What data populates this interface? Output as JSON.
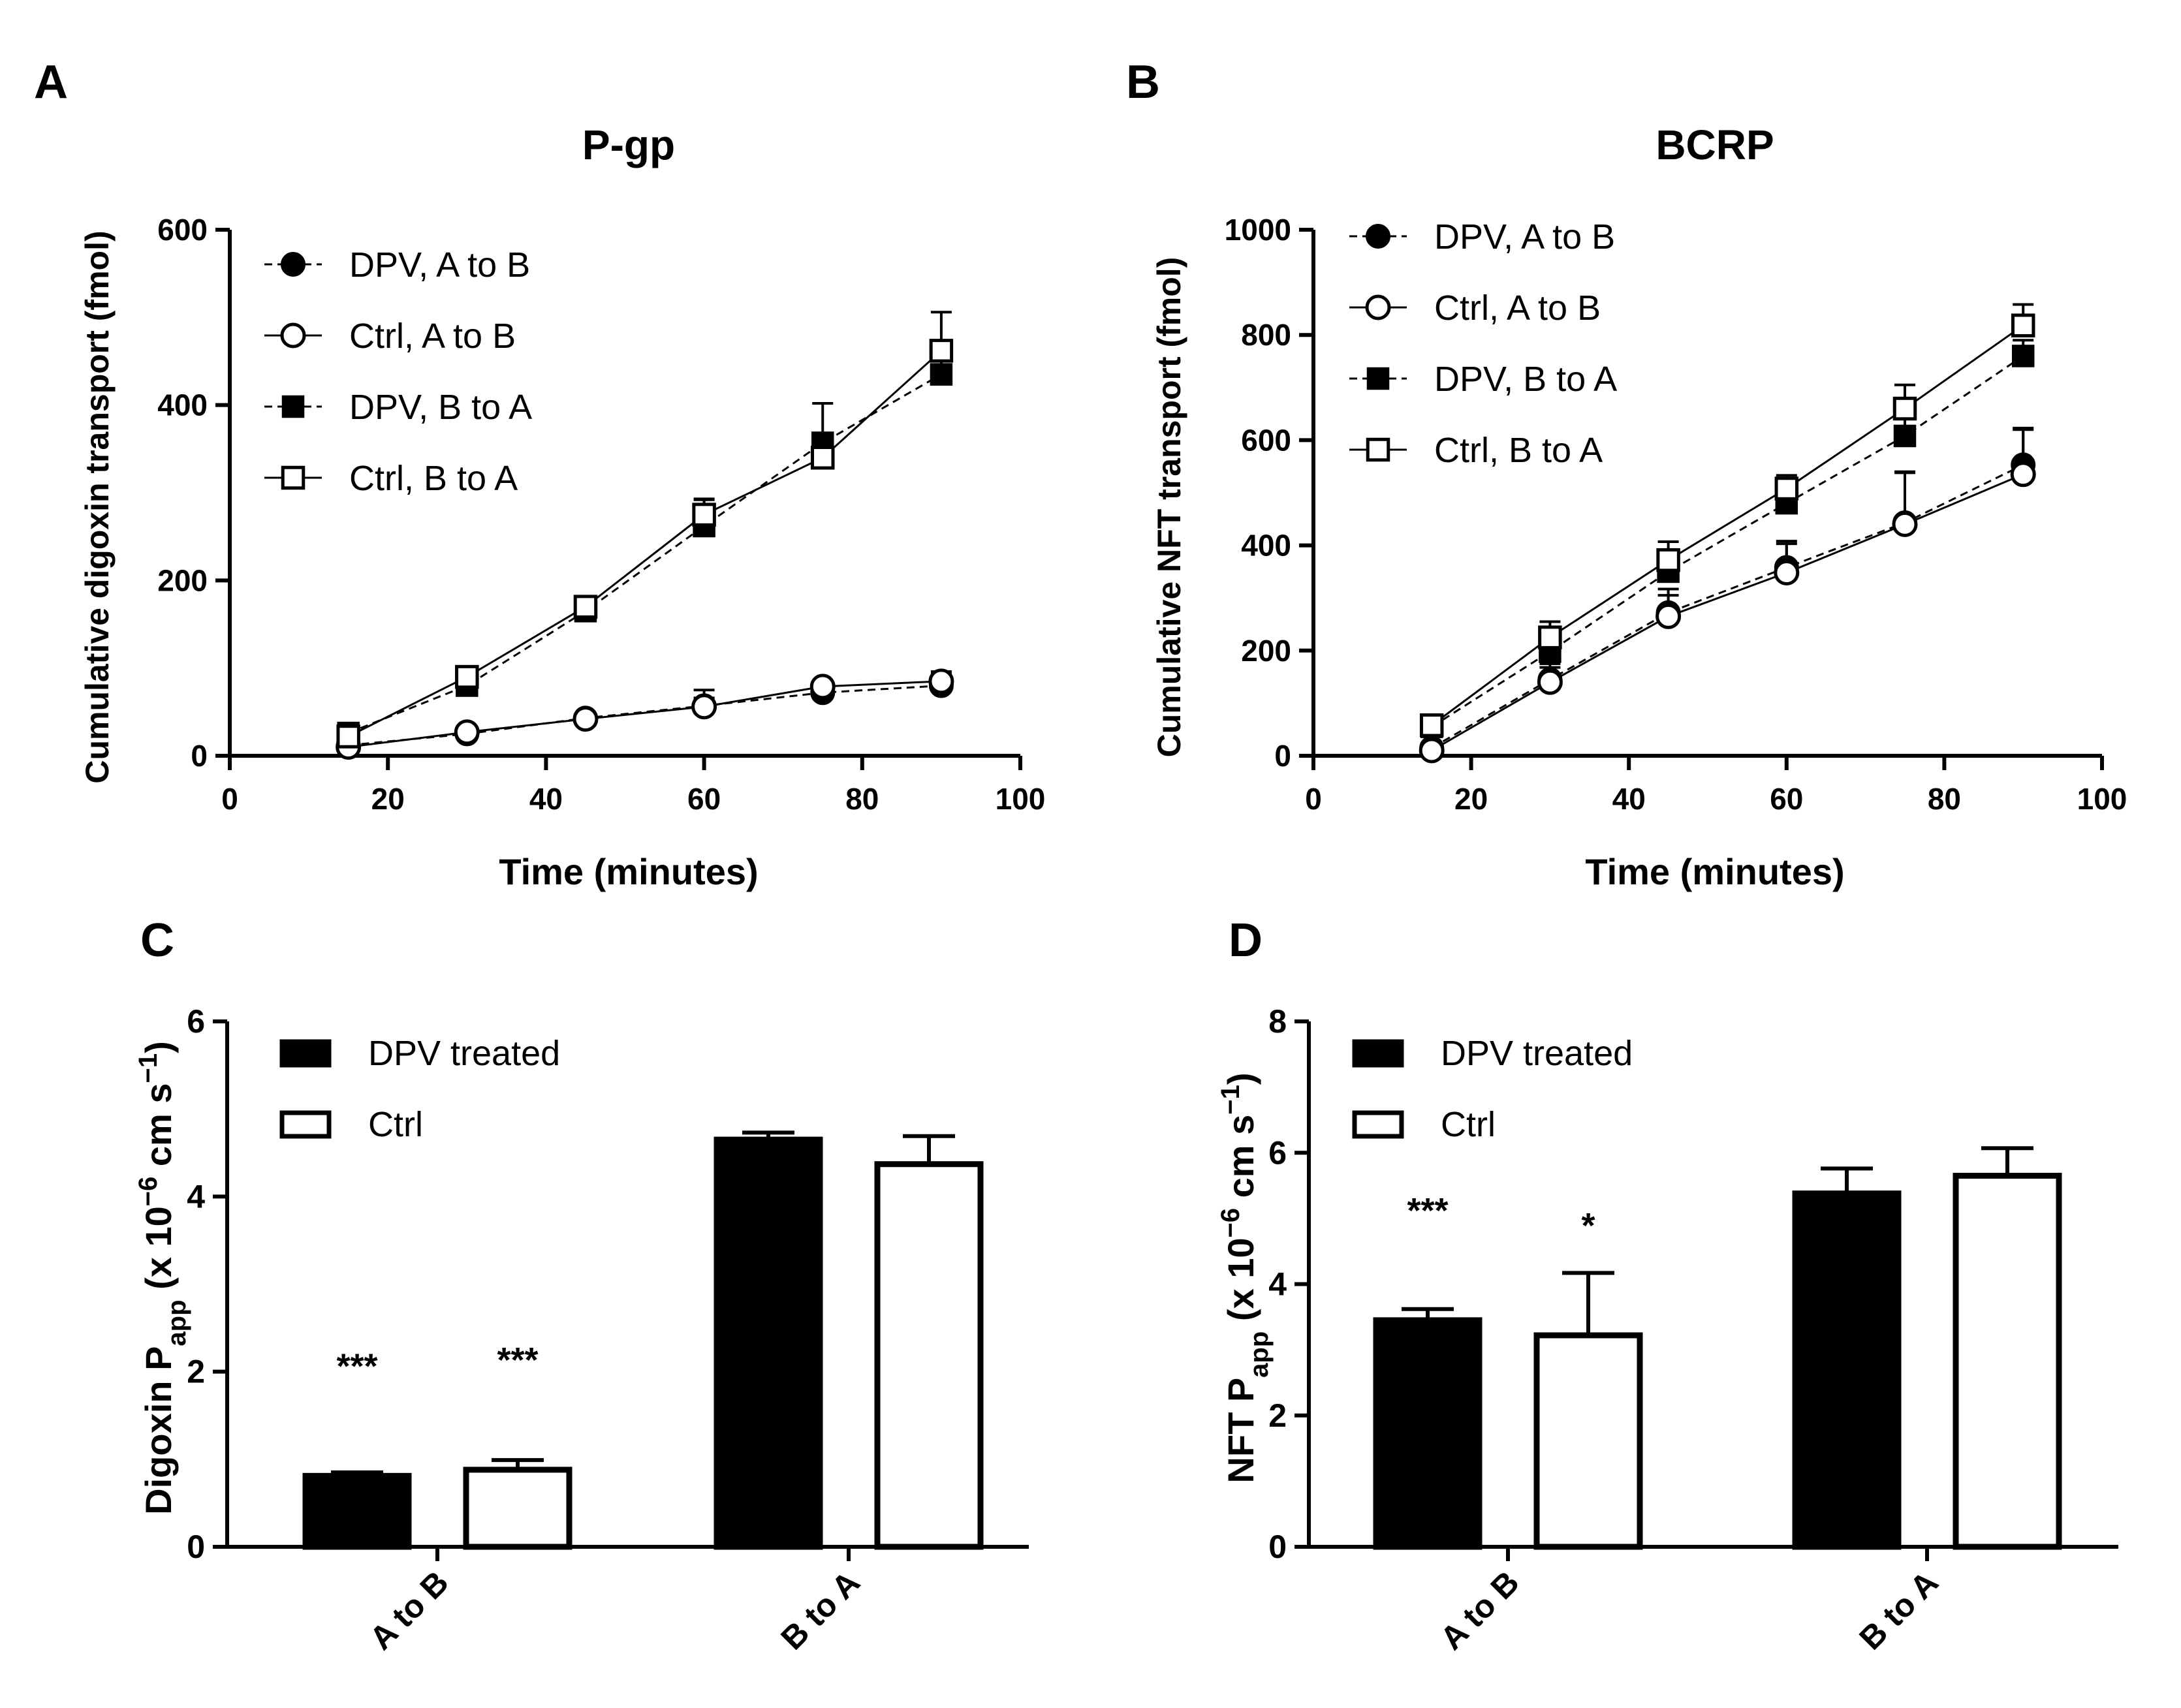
{
  "chart_data": [
    {
      "panel": "A",
      "type": "line",
      "title": "P-gp",
      "xlabel": "Time (minutes)",
      "ylabel": "Cumulative digoxin transport (fmol)",
      "xlim": [
        0,
        100
      ],
      "ylim": [
        0,
        600
      ],
      "xticks": [
        "0",
        "20",
        "40",
        "60",
        "80",
        "100"
      ],
      "yticks": [
        "0",
        "200",
        "400",
        "600"
      ],
      "x": [
        15,
        30,
        45,
        60,
        75,
        90
      ],
      "series": [
        {
          "name": "DPV, A to B",
          "marker": "filled-circle",
          "dash": true,
          "values": [
            12,
            25,
            43,
            57,
            72,
            80
          ],
          "errors": [
            4,
            6,
            5,
            18,
            6,
            16
          ]
        },
        {
          "name": "Ctrl, A to B",
          "marker": "open-circle",
          "dash": false,
          "values": [
            10,
            27,
            42,
            56,
            79,
            85
          ],
          "errors": [
            3,
            5,
            5,
            10,
            6,
            8
          ]
        },
        {
          "name": "DPV, B to A",
          "marker": "filled-square",
          "dash": true,
          "values": [
            26,
            80,
            165,
            262,
            357,
            435
          ],
          "errors": [
            6,
            8,
            10,
            30,
            45,
            18
          ]
        },
        {
          "name": "Ctrl, B to A",
          "marker": "open-square",
          "dash": false,
          "values": [
            22,
            90,
            170,
            275,
            340,
            462
          ],
          "errors": [
            5,
            10,
            8,
            18,
            28,
            44
          ]
        }
      ]
    },
    {
      "panel": "B",
      "type": "line",
      "title": "BCRP",
      "xlabel": "Time (minutes)",
      "ylabel": "Cumulative NFT transport (fmol)",
      "xlim": [
        0,
        100
      ],
      "ylim": [
        0,
        1000
      ],
      "xticks": [
        "0",
        "20",
        "40",
        "60",
        "80",
        "100"
      ],
      "yticks": [
        "0",
        "200",
        "400",
        "600",
        "800",
        "1000"
      ],
      "x": [
        15,
        30,
        45,
        60,
        75,
        90
      ],
      "series": [
        {
          "name": "DPV, A to B",
          "marker": "filled-circle",
          "dash": true,
          "values": [
            15,
            145,
            272,
            358,
            443,
            553
          ],
          "errors": [
            6,
            30,
            45,
            50,
            95,
            70
          ]
        },
        {
          "name": "Ctrl, A to B",
          "marker": "open-circle",
          "dash": false,
          "values": [
            10,
            140,
            265,
            348,
            440,
            535
          ],
          "errors": [
            6,
            28,
            40,
            55,
            100,
            85
          ]
        },
        {
          "name": "DPV, B to A",
          "marker": "filled-square",
          "dash": true,
          "values": [
            55,
            198,
            350,
            480,
            608,
            760
          ],
          "errors": [
            8,
            25,
            35,
            45,
            35,
            30
          ]
        },
        {
          "name": "Ctrl, B to A",
          "marker": "open-square",
          "dash": false,
          "values": [
            58,
            225,
            372,
            508,
            660,
            818
          ],
          "errors": [
            8,
            30,
            35,
            25,
            45,
            40
          ]
        }
      ]
    },
    {
      "panel": "C",
      "type": "bar",
      "ylabel": "Digoxin Papp (x 10−6 cm s−1)",
      "ylim": [
        0,
        6
      ],
      "yticks": [
        "0",
        "2",
        "4",
        "6"
      ],
      "categories": [
        "A to B",
        "B to A"
      ],
      "series": [
        {
          "name": "DPV treated",
          "fill": "#000000",
          "values": [
            0.81,
            4.65
          ],
          "errors": [
            0.04,
            0.08
          ]
        },
        {
          "name": "Ctrl",
          "fill": "#ffffff",
          "values": [
            0.88,
            4.37
          ],
          "errors": [
            0.11,
            0.32
          ]
        }
      ],
      "annotations": [
        {
          "category": 0,
          "series": 0,
          "text": "***"
        },
        {
          "category": 0,
          "series": 1,
          "text": "***"
        }
      ]
    },
    {
      "panel": "D",
      "type": "bar",
      "ylabel": "NFT Papp (x 10−6 cm s−1)",
      "ylim": [
        0,
        8
      ],
      "yticks": [
        "0",
        "2",
        "4",
        "6",
        "8"
      ],
      "categories": [
        "A to B",
        "B to A"
      ],
      "series": [
        {
          "name": "DPV treated",
          "fill": "#000000",
          "values": [
            3.45,
            5.38
          ],
          "errors": [
            0.17,
            0.38
          ]
        },
        {
          "name": "Ctrl",
          "fill": "#ffffff",
          "values": [
            3.22,
            5.65
          ],
          "errors": [
            0.95,
            0.42
          ]
        }
      ],
      "annotations": [
        {
          "category": 0,
          "series": 0,
          "text": "***"
        },
        {
          "category": 0,
          "series": 1,
          "text": "*"
        }
      ]
    }
  ]
}
